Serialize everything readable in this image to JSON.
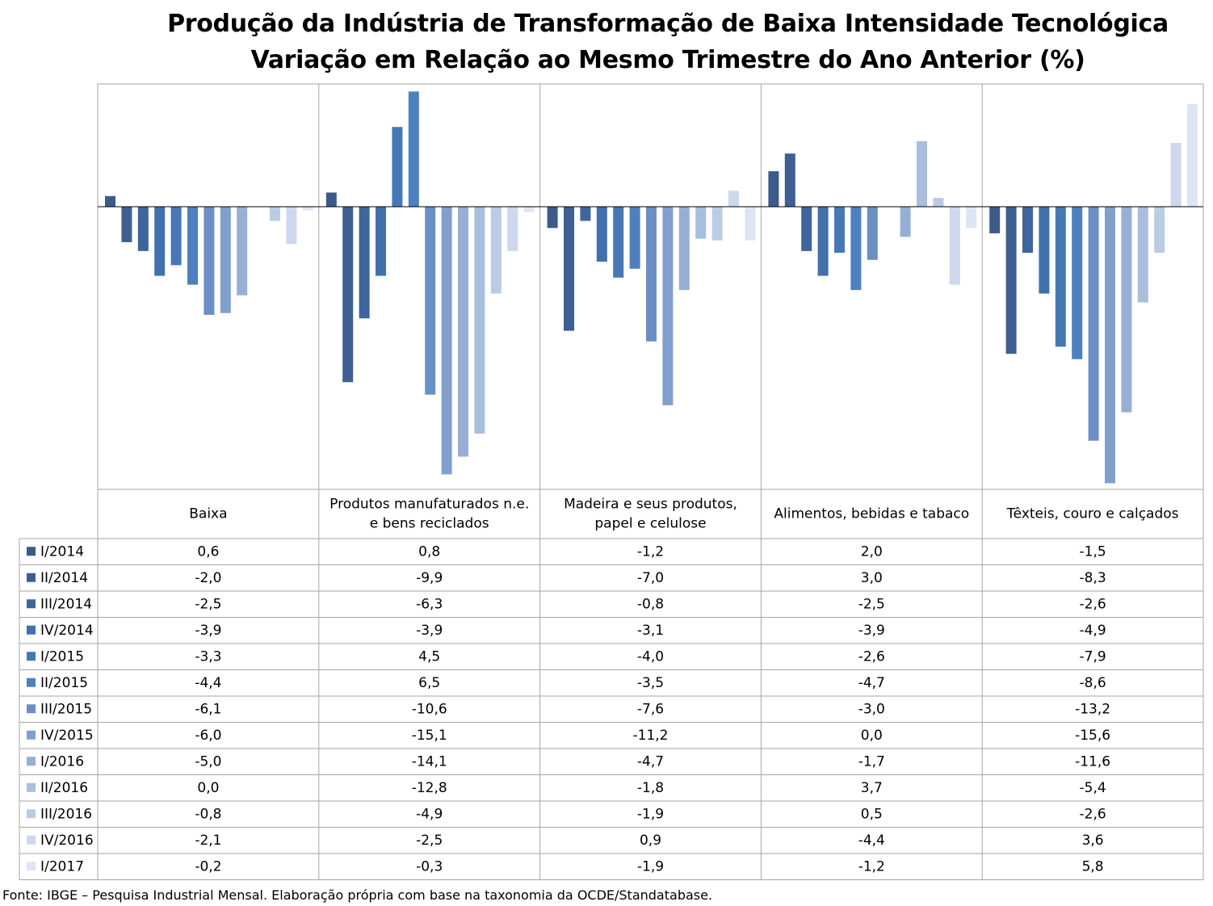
{
  "chart_data": {
    "type": "bar",
    "title": "Produção da Indústria de Transformação de Baixa Intensidade Tecnológica",
    "subtitle": "Variação em Relação ao Mesmo Trimestre do Ano Anterior (%)",
    "categories": [
      "Baixa",
      "Produtos manufaturados n.e. e bens reciclados",
      "Madeira e seus produtos, papel e celulose",
      "Alimentos, bebidas e tabaco",
      "Têxteis, couro e calçados"
    ],
    "category_lines": [
      [
        "Baixa"
      ],
      [
        "Produtos manufaturados n.e.",
        "e bens reciclados"
      ],
      [
        "Madeira e seus produtos,",
        "papel e celulose"
      ],
      [
        "Alimentos, bebidas e tabaco"
      ],
      [
        "Têxteis, couro e calçados"
      ]
    ],
    "series": [
      {
        "name": "I/2014",
        "color": "#3c5a8a",
        "values": [
          0.6,
          0.8,
          -1.2,
          2.0,
          -1.5
        ],
        "labels": [
          "0,6",
          "0,8",
          "-1,2",
          "2,0",
          "-1,5"
        ]
      },
      {
        "name": "II/2014",
        "color": "#3d5f92",
        "values": [
          -2.0,
          -9.9,
          -7.0,
          3.0,
          -8.3
        ],
        "labels": [
          "-2,0",
          "-9,9",
          "-7,0",
          "3,0",
          "-8,3"
        ]
      },
      {
        "name": "III/2014",
        "color": "#3e659c",
        "values": [
          -2.5,
          -6.3,
          -0.8,
          -2.5,
          -2.6
        ],
        "labels": [
          "-2,5",
          "-6,3",
          "-0,8",
          "-2,5",
          "-2,6"
        ]
      },
      {
        "name": "IV/2014",
        "color": "#4170ab",
        "values": [
          -3.9,
          -3.9,
          -3.1,
          -3.9,
          -4.9
        ],
        "labels": [
          "-3,9",
          "-3,9",
          "-3,1",
          "-3,9",
          "-4,9"
        ]
      },
      {
        "name": "I/2015",
        "color": "#4678b6",
        "values": [
          -3.3,
          4.5,
          -4.0,
          -2.6,
          -7.9
        ],
        "labels": [
          "-3,3",
          "4,5",
          "-4,0",
          "-2,6",
          "-7,9"
        ]
      },
      {
        "name": "II/2015",
        "color": "#4d80bf",
        "values": [
          -4.4,
          6.5,
          -3.5,
          -4.7,
          -8.6
        ],
        "labels": [
          "-4,4",
          "6,5",
          "-3,5",
          "-4,7",
          "-8,6"
        ]
      },
      {
        "name": "III/2015",
        "color": "#6b8fc4",
        "values": [
          -6.1,
          -10.6,
          -7.6,
          -3.0,
          -13.2
        ],
        "labels": [
          "-6,1",
          "-10,6",
          "-7,6",
          "-3,0",
          "-13,2"
        ]
      },
      {
        "name": "IV/2015",
        "color": "#819fcd",
        "values": [
          -6.0,
          -15.1,
          -11.2,
          0.0,
          -15.6
        ],
        "labels": [
          "-6,0",
          "-15,1",
          "-11,2",
          "0,0",
          "-15,6"
        ]
      },
      {
        "name": "I/2016",
        "color": "#97afd5",
        "values": [
          -5.0,
          -14.1,
          -4.7,
          -1.7,
          -11.6
        ],
        "labels": [
          "-5,0",
          "-14,1",
          "-4,7",
          "-1,7",
          "-11,6"
        ]
      },
      {
        "name": "II/2016",
        "color": "#a9bddc",
        "values": [
          0.0,
          -12.8,
          -1.8,
          3.7,
          -5.4
        ],
        "labels": [
          "0,0",
          "-12,8",
          "-1,8",
          "3,7",
          "-5,4"
        ]
      },
      {
        "name": "III/2016",
        "color": "#bccbe4",
        "values": [
          -0.8,
          -4.9,
          -1.9,
          0.5,
          -2.6
        ],
        "labels": [
          "-0,8",
          "-4,9",
          "-1,9",
          "0,5",
          "-2,6"
        ]
      },
      {
        "name": "IV/2016",
        "color": "#cdd8ec",
        "values": [
          -2.1,
          -2.5,
          0.9,
          -4.4,
          3.6
        ],
        "labels": [
          "-2,1",
          "-2,5",
          "0,9",
          "-4,4",
          "3,6"
        ]
      },
      {
        "name": "I/2017",
        "color": "#dde5f2",
        "values": [
          -0.2,
          -0.3,
          -1.9,
          -1.2,
          5.8
        ],
        "labels": [
          "-0,2",
          "-0,3",
          "-1,9",
          "-1,2",
          "5,8"
        ]
      }
    ],
    "ylim": [
      -15.6,
      6.5
    ],
    "legend": "data-table",
    "grid": false
  },
  "footer": "Fonte: IBGE – Pesquisa Industrial Mensal. Elaboração própria com base na taxonomia da OCDE/Standatabase."
}
